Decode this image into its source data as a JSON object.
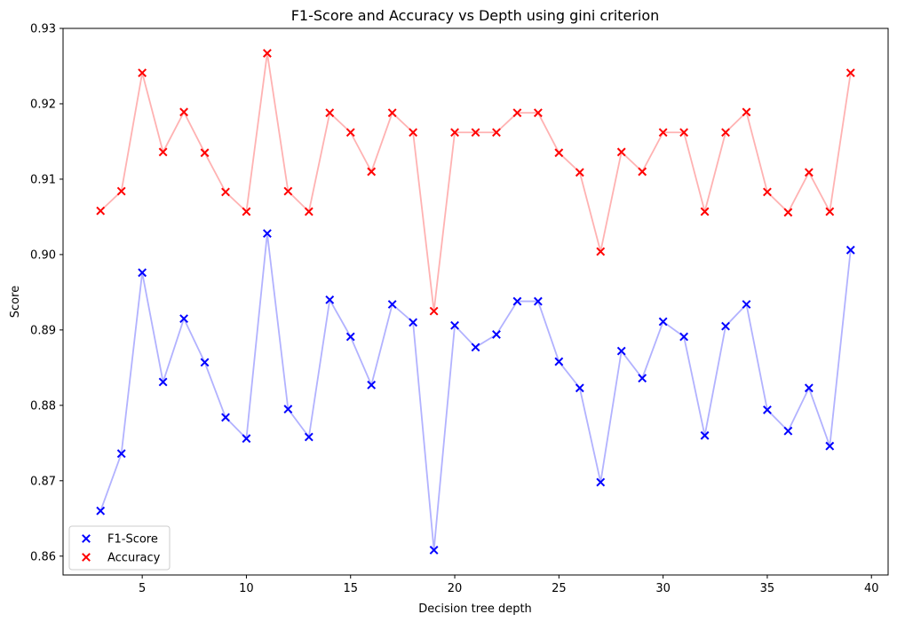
{
  "chart_data": {
    "type": "scatter",
    "title": "F1-Score and Accuracy vs Depth using gini criterion",
    "xlabel": "Decision tree depth",
    "ylabel": "Score",
    "xlim": [
      1.2,
      40.8
    ],
    "ylim": [
      0.8575,
      0.93
    ],
    "xticks": [
      5,
      10,
      15,
      20,
      25,
      30,
      35,
      40
    ],
    "yticks": [
      0.86,
      0.87,
      0.88,
      0.89,
      0.9,
      0.91,
      0.92,
      0.93
    ],
    "ytick_labels": [
      "0.86",
      "0.87",
      "0.88",
      "0.89",
      "0.90",
      "0.91",
      "0.92",
      "0.93"
    ],
    "grid": false,
    "legend_position": "lower-left",
    "x": [
      3,
      4,
      5,
      6,
      7,
      8,
      9,
      10,
      11,
      12,
      13,
      14,
      15,
      16,
      17,
      18,
      19,
      20,
      21,
      22,
      23,
      24,
      25,
      26,
      27,
      28,
      29,
      30,
      31,
      32,
      33,
      34,
      35,
      36,
      37,
      38,
      39
    ],
    "series": [
      {
        "name": "F1-Score",
        "color": "#0000ff",
        "line_color": "#b2b2ff",
        "marker": "x",
        "values": [
          0.866,
          0.8736,
          0.8976,
          0.8831,
          0.8915,
          0.8857,
          0.8784,
          0.8756,
          0.9028,
          0.8795,
          0.8758,
          0.894,
          0.8891,
          0.8827,
          0.8934,
          0.891,
          0.8608,
          0.8906,
          0.8877,
          0.8894,
          0.8938,
          0.8938,
          0.8858,
          0.8823,
          0.8698,
          0.8872,
          0.8836,
          0.8911,
          0.8891,
          0.876,
          0.8905,
          0.8934,
          0.8794,
          0.8766,
          0.8823,
          0.8746,
          0.9006
        ]
      },
      {
        "name": "Accuracy",
        "color": "#ff0000",
        "line_color": "#ffb2b2",
        "marker": "x",
        "values": [
          0.9058,
          0.9084,
          0.9241,
          0.9136,
          0.9189,
          0.9135,
          0.9083,
          0.9057,
          0.9267,
          0.9084,
          0.9057,
          0.9188,
          0.9162,
          0.911,
          0.9188,
          0.9162,
          0.8925,
          0.9162,
          0.9162,
          0.9162,
          0.9188,
          0.9188,
          0.9135,
          0.9109,
          0.9004,
          0.9136,
          0.911,
          0.9162,
          0.9162,
          0.9057,
          0.9162,
          0.9189,
          0.9083,
          0.9056,
          0.9109,
          0.9057,
          0.9241
        ]
      }
    ]
  }
}
